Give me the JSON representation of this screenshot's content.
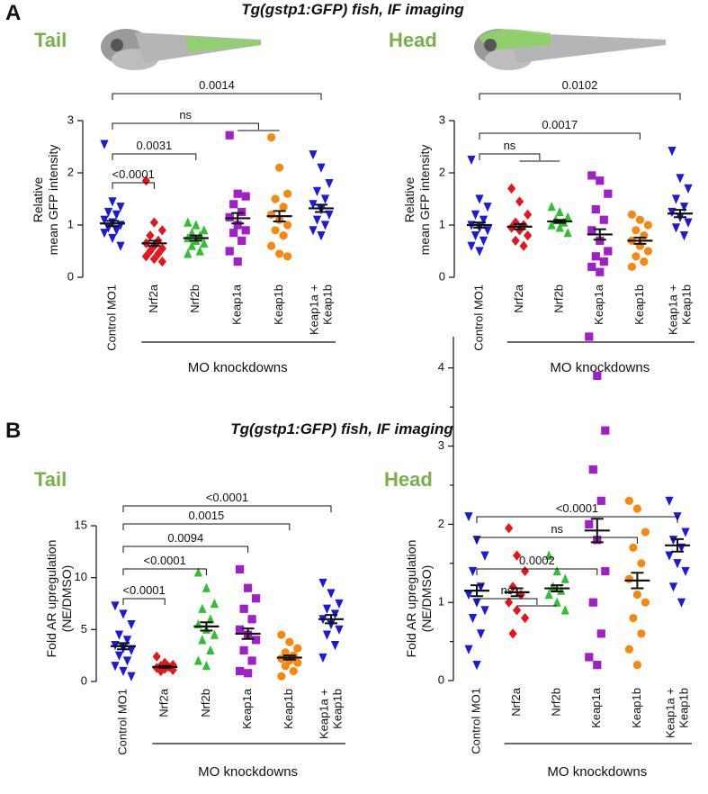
{
  "panels": [
    {
      "label": "A",
      "title": "Tg(gstp1:GFP) fish, IF imaging"
    },
    {
      "label": "B",
      "title": "Tg(gstp1:GFP) fish, IF imaging"
    }
  ],
  "chart_data": [
    {
      "type": "dot",
      "title": "Tail",
      "ylabel": [
        "Relative",
        "mean GFP intensity"
      ],
      "categories": [
        "Control MO1",
        "Nrf2a",
        "Nrf2b",
        "Keap1a",
        "Keap1b",
        [
          "Keap1a +",
          "Keap1b"
        ]
      ],
      "colors": [
        "#1a1adb",
        "#e8141b",
        "#2fbf2f",
        "#a01fc8",
        "#f7880f",
        "#1a1adb"
      ],
      "markers": [
        "triangle-down",
        "diamond",
        "triangle-up",
        "square",
        "circle",
        "triangle-down"
      ],
      "values": [
        [
          2.55,
          1.45,
          1.35,
          1.25,
          1.2,
          1.1,
          1.05,
          1.0,
          0.95,
          0.9,
          0.85,
          0.75,
          0.6
        ],
        [
          1.85,
          1.05,
          0.9,
          0.8,
          0.7,
          0.65,
          0.6,
          0.55,
          0.5,
          0.45,
          0.4,
          0.35,
          0.3
        ],
        [
          1.05,
          1.0,
          0.9,
          0.85,
          0.8,
          0.75,
          0.7,
          0.65,
          0.6,
          0.5,
          0.45
        ],
        [
          2.72,
          1.6,
          1.55,
          1.4,
          1.25,
          1.15,
          1.0,
          0.9,
          0.85,
          0.7,
          0.5,
          0.3
        ],
        [
          2.68,
          2.1,
          1.6,
          1.5,
          1.35,
          1.2,
          1.1,
          1.0,
          0.9,
          0.8,
          0.6,
          0.45,
          0.4
        ],
        [
          2.35,
          2.1,
          1.8,
          1.65,
          1.5,
          1.4,
          1.3,
          1.2,
          1.1,
          1.0,
          0.9,
          0.8
        ]
      ],
      "means": [
        1.03,
        0.65,
        0.75,
        1.13,
        1.17,
        1.32
      ],
      "errors": [
        0.05,
        0.05,
        0.05,
        0.1,
        0.1,
        0.07
      ],
      "ylim": [
        0,
        3
      ],
      "yticks": [
        0,
        1,
        2,
        3
      ],
      "group_label": "MO knockdowns",
      "comparisons": [
        {
          "from": 0,
          "to": 5,
          "label": "0.0014"
        },
        {
          "from": 0,
          "to": [
            3,
            4
          ],
          "label": "ns"
        },
        {
          "from": 0,
          "to": 2,
          "label": "0.0031"
        },
        {
          "from": 0,
          "to": 1,
          "label": "<0.0001"
        }
      ]
    },
    {
      "type": "dot",
      "title": "Head",
      "ylabel": [
        "Relative",
        "mean GFP intensity"
      ],
      "categories": [
        "Control MO1",
        "Nrf2a",
        "Nrf2b",
        "Keap1a",
        "Keap1b",
        [
          "Keap1a +",
          "Keap1b"
        ]
      ],
      "colors": [
        "#1a1adb",
        "#e8141b",
        "#2fbf2f",
        "#a01fc8",
        "#f7880f",
        "#1a1adb"
      ],
      "markers": [
        "triangle-down",
        "diamond",
        "triangle-up",
        "square",
        "circle",
        "triangle-down"
      ],
      "values": [
        [
          2.25,
          1.5,
          1.35,
          1.2,
          1.1,
          1.0,
          0.95,
          0.9,
          0.8,
          0.7,
          0.6,
          0.5
        ],
        [
          1.7,
          1.45,
          1.2,
          1.05,
          1.0,
          0.95,
          0.9,
          0.8,
          0.7,
          0.6
        ],
        [
          1.35,
          1.25,
          1.15,
          1.1,
          1.05,
          1.0,
          0.95,
          0.85
        ],
        [
          1.95,
          1.85,
          1.6,
          1.3,
          1.1,
          0.9,
          0.7,
          0.5,
          0.4,
          0.3,
          0.2,
          0.1
        ],
        [
          1.2,
          1.1,
          1.0,
          0.9,
          0.8,
          0.7,
          0.6,
          0.5,
          0.4,
          0.3,
          0.2
        ],
        [
          2.42,
          1.9,
          1.7,
          1.5,
          1.35,
          1.25,
          1.15,
          1.05,
          0.95,
          0.8
        ]
      ],
      "means": [
        1.0,
        0.97,
        1.07,
        0.82,
        0.7,
        1.22
      ],
      "errors": [
        0.05,
        0.05,
        0.03,
        0.1,
        0.06,
        0.07
      ],
      "ylim": [
        0,
        3
      ],
      "yticks": [
        0,
        1,
        2,
        3
      ],
      "group_label": "MO knockdowns",
      "comparisons": [
        {
          "from": 0,
          "to": 5,
          "label": "0.0102"
        },
        {
          "from": 0,
          "to": 4,
          "label": "0.0017"
        },
        {
          "from": 0,
          "to": [
            1,
            2
          ],
          "label": "ns"
        }
      ]
    },
    {
      "type": "dot",
      "title": "Tail",
      "ylabel": [
        "Fold AR upregulation",
        "(NE/DMSO)"
      ],
      "categories": [
        "Control MO1",
        "Nrf2a",
        "Nrf2b",
        "Keap1a",
        "Keap1b",
        [
          "Keap1a +",
          "Keap1b"
        ]
      ],
      "colors": [
        "#1a1adb",
        "#e8141b",
        "#2fbf2f",
        "#a01fc8",
        "#f7880f",
        "#1a1adb"
      ],
      "markers": [
        "triangle-down",
        "diamond",
        "triangle-up",
        "square",
        "circle",
        "triangle-down"
      ],
      "values": [
        [
          7.3,
          6.5,
          5.5,
          4.5,
          4,
          3.5,
          3.2,
          3,
          2.5,
          2,
          1.5,
          1,
          0.5
        ],
        [
          2.4,
          1.8,
          1.6,
          1.5,
          1.4,
          1.3,
          1.2,
          1.1,
          1.0
        ],
        [
          10.5,
          9,
          7.5,
          7,
          6,
          5.5,
          5,
          4.5,
          4,
          3,
          2,
          1.5
        ],
        [
          10.8,
          9,
          8,
          7,
          6,
          5,
          4.5,
          4,
          3,
          2,
          1,
          0.8
        ],
        [
          4.5,
          3.8,
          3.2,
          2.8,
          2.5,
          2.2,
          2,
          1.8,
          1.5,
          1,
          0.5
        ],
        [
          9.5,
          8.5,
          7.5,
          7,
          6.5,
          6,
          5.5,
          5,
          4.5,
          3.5,
          2.3
        ]
      ],
      "means": [
        3.4,
        1.4,
        5.3,
        4.6,
        2.3,
        6.0
      ],
      "errors": [
        0.3,
        0.1,
        0.4,
        0.5,
        0.2,
        0.4
      ],
      "ylim": [
        0,
        15
      ],
      "yticks": [
        0,
        5,
        10,
        15
      ],
      "group_label": "MO knockdowns",
      "comparisons": [
        {
          "from": 0,
          "to": 5,
          "label": "<0.0001"
        },
        {
          "from": 0,
          "to": 4,
          "label": "0.0015"
        },
        {
          "from": 0,
          "to": 3,
          "label": "0.0094"
        },
        {
          "from": 0,
          "to": 2,
          "label": "<0.0001"
        },
        {
          "from": 0,
          "to": 1,
          "label": "<0.0001"
        }
      ]
    },
    {
      "type": "dot",
      "title": "Head",
      "ylabel": [
        "Fold AR upregulation",
        "(NE/DMSO)"
      ],
      "categories": [
        "Control MO1",
        "Nrf2a",
        "Nrf2b",
        "Keap1a",
        "Keap1b",
        [
          "Keap1a +",
          "Keap1b"
        ]
      ],
      "colors": [
        "#1a1adb",
        "#e8141b",
        "#2fbf2f",
        "#a01fc8",
        "#f7880f",
        "#1a1adb"
      ],
      "markers": [
        "triangle-down",
        "diamond",
        "triangle-up",
        "square",
        "circle",
        "triangle-down"
      ],
      "values": [
        [
          2.1,
          1.8,
          1.6,
          1.4,
          1.2,
          1.1,
          1.0,
          0.9,
          0.8,
          0.6,
          0.4,
          0.2
        ],
        [
          1.95,
          1.6,
          1.4,
          1.2,
          1.1,
          1.0,
          0.9,
          0.8,
          0.6
        ],
        [
          1.6,
          1.4,
          1.3,
          1.2,
          1.15,
          1.1,
          1.0,
          0.9
        ],
        [
          4.4,
          3.9,
          3.2,
          2.7,
          2.3,
          2.0,
          1.8,
          1.4,
          1.0,
          0.6,
          0.3,
          0.2
        ],
        [
          2.3,
          2.2,
          1.9,
          1.7,
          1.5,
          1.3,
          1.1,
          1.0,
          0.8,
          0.6,
          0.4,
          0.2
        ],
        [
          2.3,
          2.1,
          1.9,
          1.8,
          1.7,
          1.6,
          1.5,
          1.4,
          1.2,
          1.0
        ]
      ],
      "means": [
        1.15,
        1.13,
        1.18,
        1.92,
        1.28,
        1.73
      ],
      "errors": [
        0.07,
        0.05,
        0.04,
        0.15,
        0.1,
        0.08
      ],
      "ylim": [
        0,
        4.4
      ],
      "yticks": [
        0,
        1,
        2,
        3,
        4
      ],
      "yminor": [
        0.5,
        1.5,
        2.5,
        3.5
      ],
      "group_label": "MO knockdowns",
      "comparisons": [
        {
          "from": 0,
          "to": 5,
          "label": "<0.0001"
        },
        {
          "from": 0,
          "to": 4,
          "label": "ns"
        },
        {
          "from": 0,
          "to": 3,
          "label": "0.0002"
        },
        {
          "from": 0,
          "to": [
            1,
            2
          ],
          "label": "ns"
        }
      ]
    }
  ]
}
